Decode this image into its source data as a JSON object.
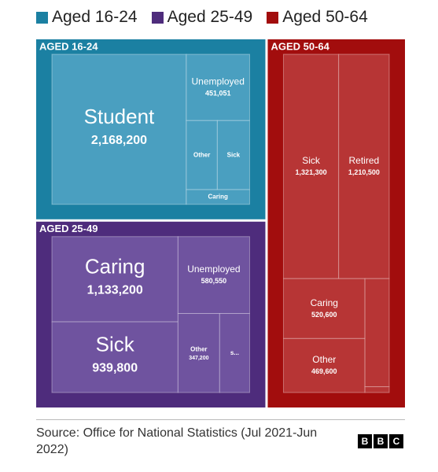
{
  "chart_data": {
    "type": "treemap",
    "groups": [
      {
        "name": "Aged 16-24",
        "label": "AGED 16-24",
        "color": "#1b80a2",
        "cell_color": "#4a9fc0",
        "items": [
          {
            "name": "Student",
            "value": 2168200,
            "value_label": "2,168,200"
          },
          {
            "name": "Unemployed",
            "value": 451051,
            "value_label": "451,051"
          },
          {
            "name": "Other",
            "value": 230000,
            "value_label": null
          },
          {
            "name": "Sick",
            "value": 240000,
            "value_label": null
          },
          {
            "name": "Caring",
            "value": 100000,
            "value_label": null
          }
        ]
      },
      {
        "name": "Aged 25-49",
        "label": "AGED 25-49",
        "color": "#4e2c7c",
        "cell_color": "#6f539f",
        "items": [
          {
            "name": "Caring",
            "value": 1133200,
            "value_label": "1,133,200"
          },
          {
            "name": "Sick",
            "value": 939800,
            "value_label": "939,800"
          },
          {
            "name": "Unemployed",
            "value": 580550,
            "value_label": "580,550"
          },
          {
            "name": "Other",
            "value": 347200,
            "value_label": "347,200"
          },
          {
            "name": "s...",
            "value": 250000,
            "value_label": null
          }
        ]
      },
      {
        "name": "Aged 50-64",
        "label": "AGED 50-64",
        "color": "#a20d0d",
        "cell_color": "#b73535",
        "items": [
          {
            "name": "Sick",
            "value": 1321300,
            "value_label": "1,321,300"
          },
          {
            "name": "Retired",
            "value": 1210500,
            "value_label": "1,210,500"
          },
          {
            "name": "Caring",
            "value": 520600,
            "value_label": "520,600"
          },
          {
            "name": "Other",
            "value": 469600,
            "value_label": "469,600"
          },
          {
            "name": null,
            "value": 280000,
            "value_label": null
          },
          {
            "name": null,
            "value": 15000,
            "value_label": null
          }
        ]
      }
    ],
    "source": "Source: Office for National Statistics (Jul 2021-Jun 2022)",
    "logo": [
      "B",
      "B",
      "C"
    ]
  }
}
